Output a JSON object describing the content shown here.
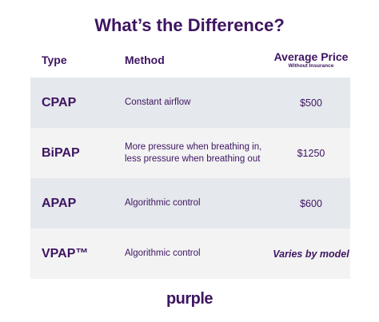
{
  "title": "What’s the Difference?",
  "headers": {
    "type": "Type",
    "method": "Method",
    "price": "Average Price",
    "price_sub": "Without Insurance"
  },
  "rows": [
    {
      "type": "CPAP",
      "method": "Constant airflow",
      "price": "$500"
    },
    {
      "type": "BiPAP",
      "method": "More pressure when breathing in, less pressure when breathing out",
      "price": "$1250"
    },
    {
      "type": "APAP",
      "method": "Algorithmic control",
      "price": "$600"
    },
    {
      "type": "VPAP™",
      "method": "Algorithmic control",
      "price": "Varies by model"
    }
  ],
  "logo": "purple",
  "colors": {
    "text": "#3e1561",
    "row_shaded": "#e5e8ed",
    "row_light": "#f3f3f4",
    "background": "#ffffff"
  }
}
